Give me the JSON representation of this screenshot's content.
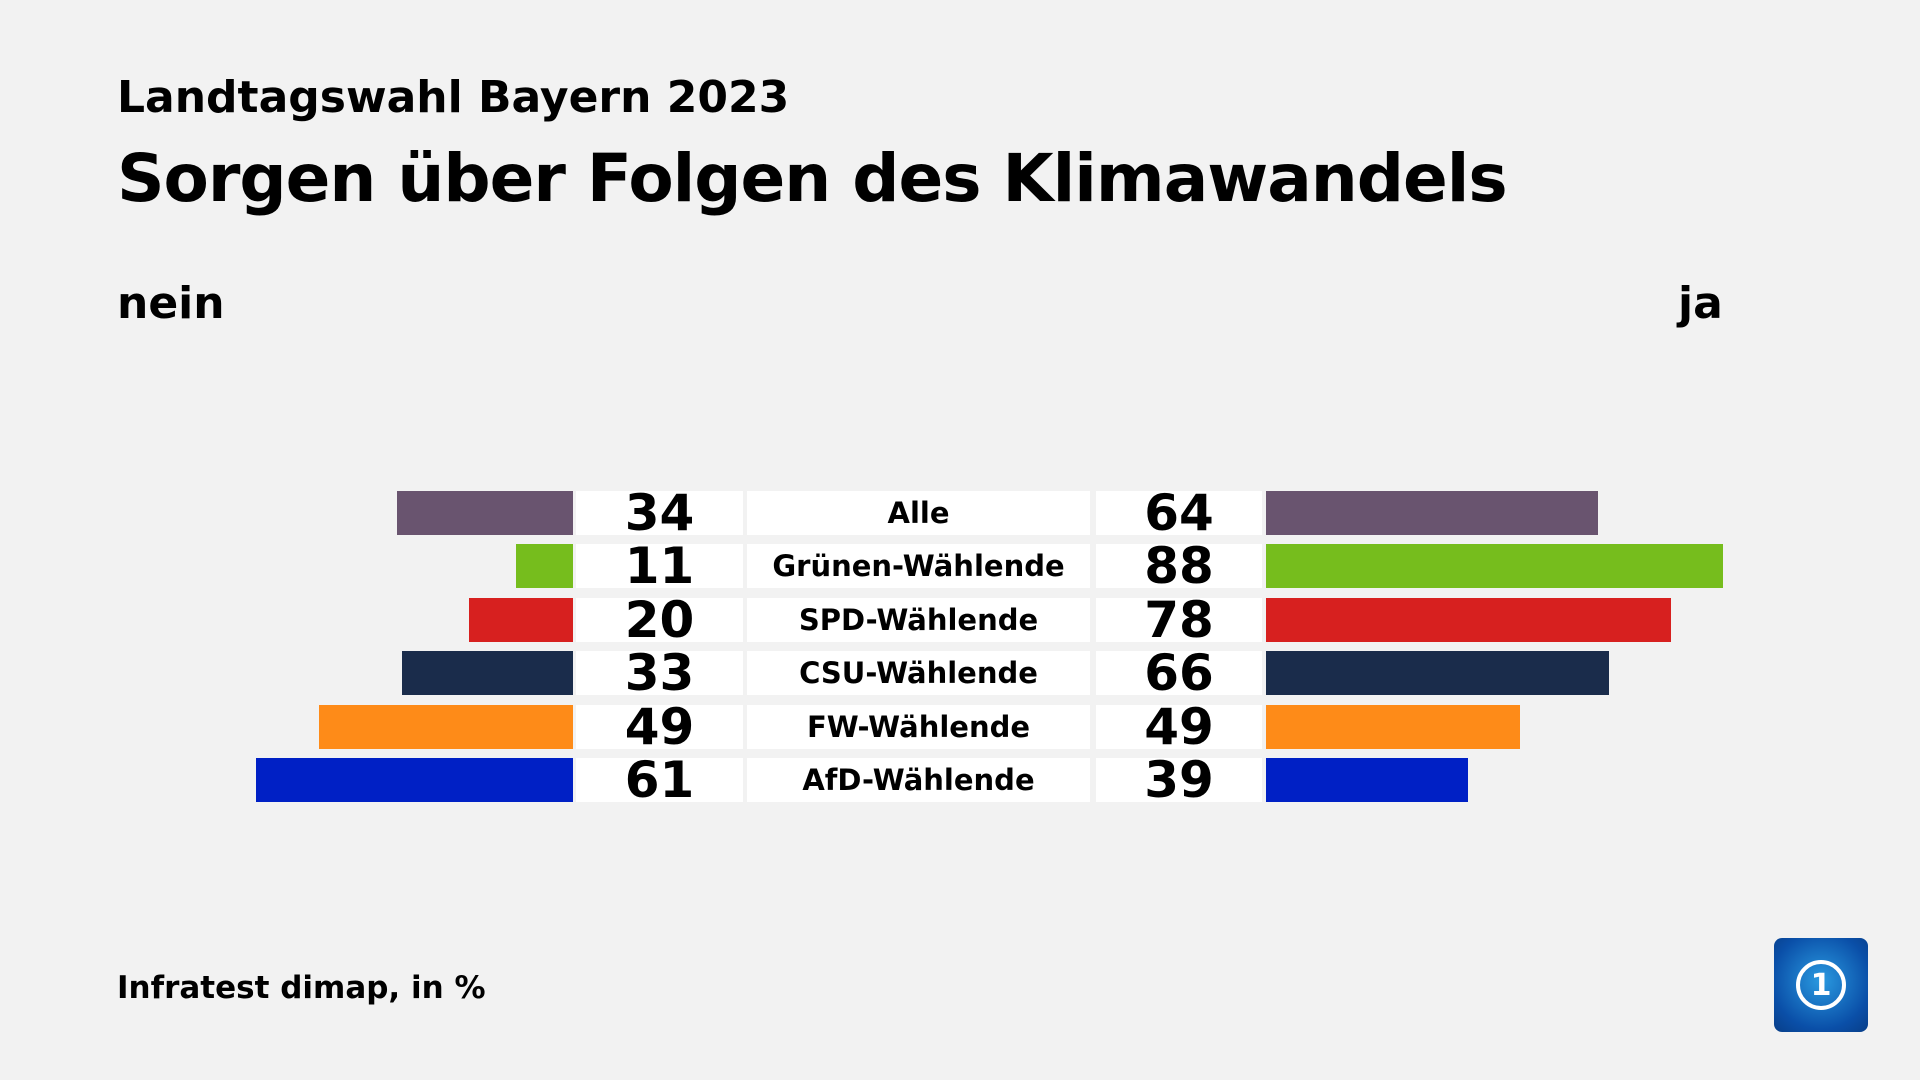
{
  "chart_data": {
    "type": "bar",
    "supertitle": "Landtagswahl Bayern 2023",
    "title": "Sorgen über Folgen des Klimawandels",
    "left_label": "nein",
    "right_label": "ja",
    "categories": [
      "Alle",
      "Grünen-Wählende",
      "SPD-Wählende",
      "CSU-Wählende",
      "FW-Wählende",
      "AfD-Wählende"
    ],
    "series": [
      {
        "name": "nein",
        "values": [
          34,
          11,
          20,
          33,
          49,
          61
        ]
      },
      {
        "name": "ja",
        "values": [
          64,
          88,
          78,
          66,
          49,
          39
        ]
      }
    ],
    "colors": [
      "#69546f",
      "#76bd1d",
      "#d7201f",
      "#1a2c4b",
      "#fe8b18",
      "#0020c5"
    ],
    "source": "Infratest dimap, in %"
  },
  "logo": {
    "text": "1",
    "icon": "ard-tagesschau-logo-icon"
  }
}
